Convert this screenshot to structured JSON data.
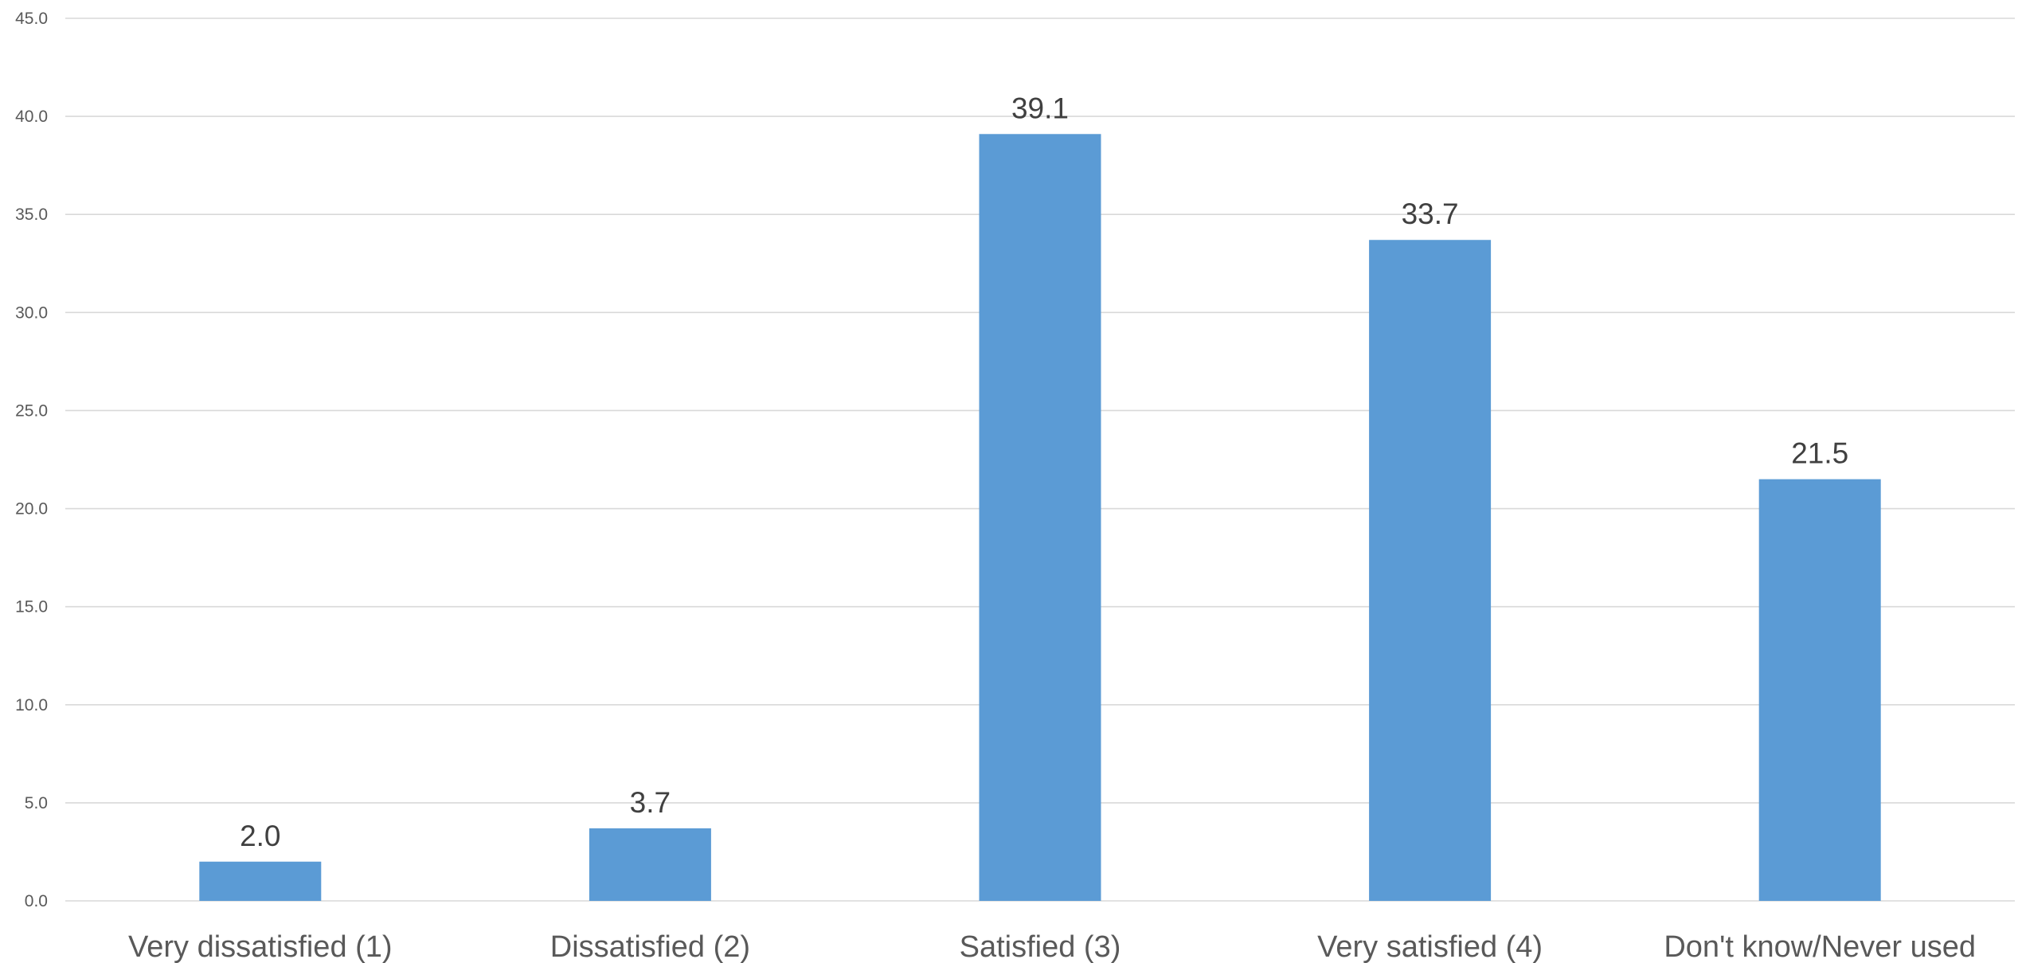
{
  "chart_data": {
    "type": "bar",
    "categories": [
      "Very dissatisfied (1)",
      "Dissatisfied (2)",
      "Satisfied (3)",
      "Very satisfied (4)",
      "Don't know/Never used"
    ],
    "values": [
      2.0,
      3.7,
      39.1,
      33.7,
      21.5
    ],
    "value_labels": [
      "2.0",
      "3.7",
      "39.1",
      "33.7",
      "21.5"
    ],
    "ylim": [
      0,
      45
    ],
    "yticks": [
      "0.0",
      "5.0",
      "10.0",
      "15.0",
      "20.0",
      "25.0",
      "30.0",
      "35.0",
      "40.0",
      "45.0"
    ],
    "ytick_values": [
      0,
      5,
      10,
      15,
      20,
      25,
      30,
      35,
      40,
      45
    ],
    "title": "",
    "xlabel": "",
    "ylabel": "",
    "grid": true,
    "legend": "none",
    "bar_color": "#5b9bd5"
  }
}
